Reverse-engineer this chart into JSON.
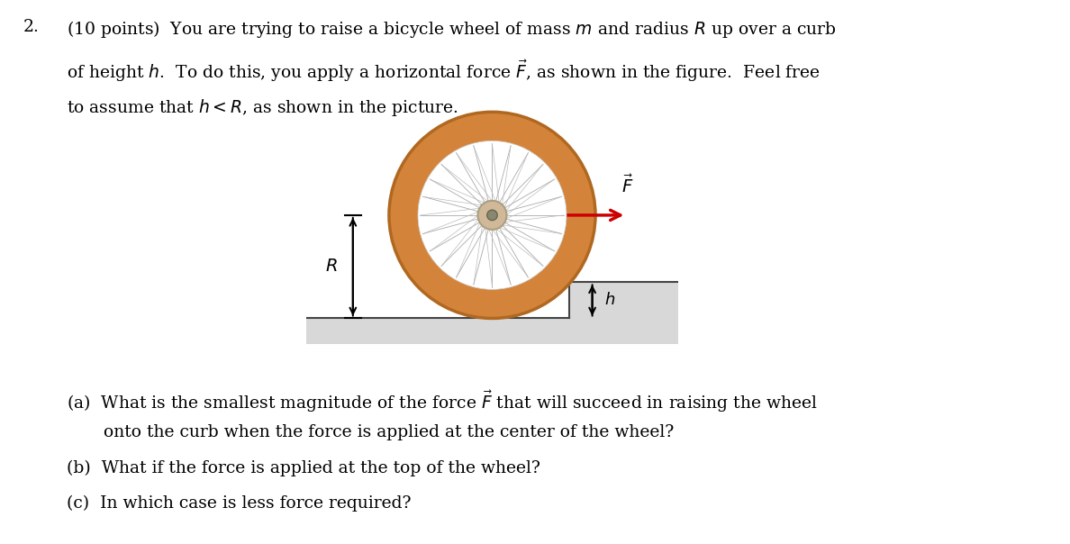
{
  "background_color": "#ffffff",
  "figure_width": 11.88,
  "figure_height": 6.04,
  "dpi": 100,
  "wheel_tire_color": "#d4843a",
  "wheel_tire_edge_color": "#b06820",
  "spoke_color": "#999999",
  "num_spokes": 24,
  "force_arrow_color": "#cc0000",
  "label_color": "#000000",
  "ground_color": "#d8d8d8",
  "ground_edge_color": "#555555",
  "text_line1": "(10 points)  You are trying to raise a bicycle wheel of mass $m$ and radius $R$ up over a curb",
  "text_line2": "of height $h$.  To do this, you apply a horizontal force $\\vec{F}$, as shown in the figure.  Feel free",
  "text_line3": "to assume that $h < R$, as shown in the picture.",
  "qa_line1": "(a)  What is the smallest magnitude of the force $\\vec{F}$ that will succeed in raising the wheel",
  "qa_line2": "      onto the curb when the force is applied at the center of the wheel?",
  "qb": "(b)  What if the force is applied at the top of the wheel?",
  "qc": "(c)  In which case is less force required?"
}
